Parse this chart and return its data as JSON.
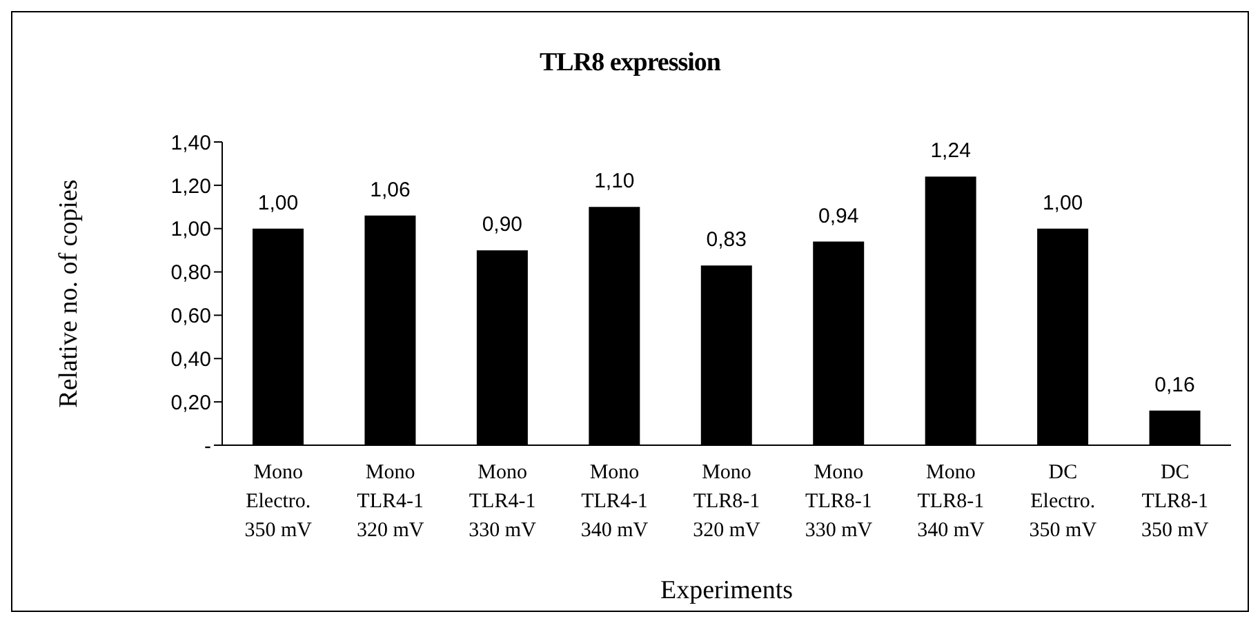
{
  "chart_data": {
    "type": "bar",
    "title": "TLR8 expression",
    "xlabel": "Experiments",
    "ylabel": "Relative no. of copies",
    "categories": [
      "Mono\nElectro.\n350 mV",
      "Mono\nTLR4-1\n320 mV",
      "Mono\nTLR4-1\n330 mV",
      "Mono\nTLR4-1\n340 mV",
      "Mono\nTLR8-1\n320 mV",
      "Mono\nTLR8-1\n330 mV",
      "Mono\nTLR8-1\n340 mV",
      "DC\nElectro.\n350 mV",
      "DC\nTLR8-1\n350 mV"
    ],
    "values": [
      1.0,
      1.06,
      0.9,
      1.1,
      0.83,
      0.94,
      1.24,
      1.0,
      0.16
    ],
    "value_labels": [
      "1,00",
      "1,06",
      "0,90",
      "1,10",
      "0,83",
      "0,94",
      "1,24",
      "1,00",
      "0,16"
    ],
    "color": "#000000",
    "ylim": [
      0,
      1.4
    ],
    "yticks": [
      {
        "value": 0,
        "label": "-"
      },
      {
        "value": 0.2,
        "label": "0,20"
      },
      {
        "value": 0.4,
        "label": "0,40"
      },
      {
        "value": 0.6,
        "label": "0,60"
      },
      {
        "value": 0.8,
        "label": "0,80"
      },
      {
        "value": 1.0,
        "label": "1,00"
      },
      {
        "value": 1.2,
        "label": "1,20"
      },
      {
        "value": 1.4,
        "label": "1,40"
      }
    ],
    "grid": false,
    "legend": false
  }
}
